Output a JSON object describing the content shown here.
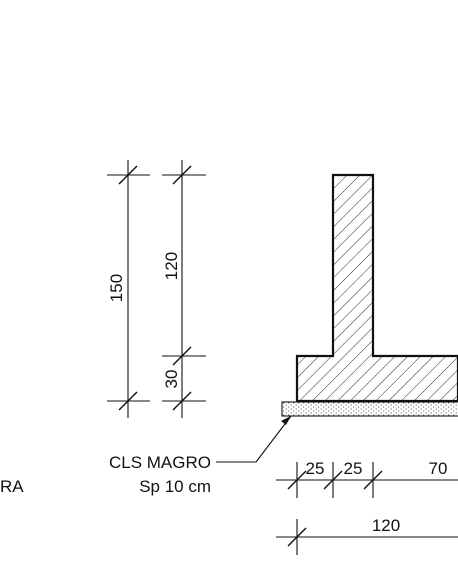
{
  "dimensions": {
    "total_height": "150",
    "stem_height": "120",
    "base_height": "30",
    "width_a": "25",
    "width_b": "25",
    "width_c": "70",
    "total_width": "120"
  },
  "labels": {
    "lean_concrete": "CLS MAGRO",
    "lean_concrete_thickness": "Sp 10 cm",
    "left_cut_text": "RA"
  },
  "colors": {
    "line": "#111111",
    "background": "#ffffff"
  }
}
